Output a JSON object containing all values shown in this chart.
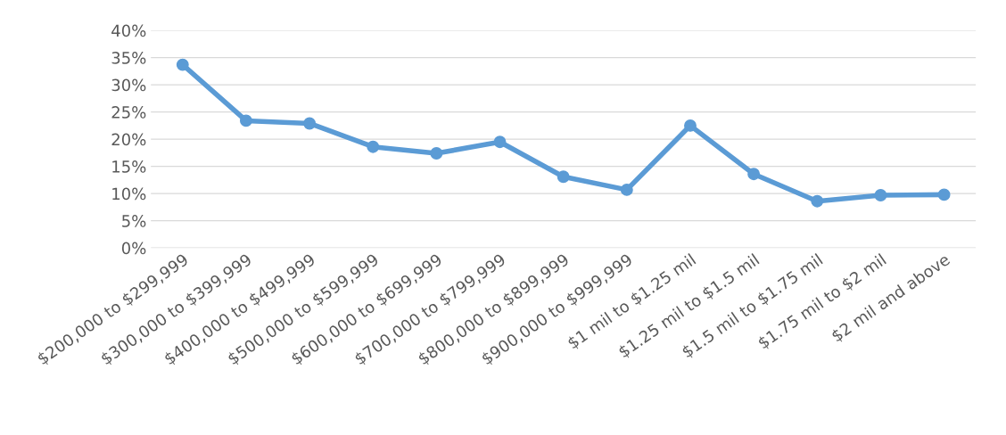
{
  "chart_data": {
    "type": "line",
    "categories": [
      "$200,000 to $299,999",
      "$300,000 to $399,999",
      "$400,000 to $499,999",
      "$500,000 to $599,999",
      "$600,000 to $699,999",
      "$700,000 to $799,999",
      "$800,000 to $899,999",
      "$900,000 to $999,999",
      "$1 mil to $1.25 mil",
      "$1.25 mil to $1.5 mil",
      "$1.5 mil to $1.75 mil",
      "$1.75 mil to $2 mil",
      "$2 mil and above"
    ],
    "series": [
      {
        "color": "#5b9bd5",
        "values": [
          33.7,
          23.4,
          22.9,
          18.6,
          17.4,
          19.5,
          13.1,
          10.7,
          22.5,
          13.6,
          8.6,
          9.7,
          9.8
        ]
      }
    ],
    "ylim": [
      0,
      40
    ],
    "yticks": [
      {
        "value": 0,
        "label": "0%"
      },
      {
        "value": 5,
        "label": "5%"
      },
      {
        "value": 10,
        "label": "10%"
      },
      {
        "value": 15,
        "label": "15%"
      },
      {
        "value": 20,
        "label": "20%"
      },
      {
        "value": 25,
        "label": "25%"
      },
      {
        "value": 30,
        "label": "30%"
      },
      {
        "value": 35,
        "label": "35%"
      },
      {
        "value": 40,
        "label": "40%"
      }
    ],
    "grid": "y",
    "marker": "circle",
    "line_style": "solid"
  }
}
